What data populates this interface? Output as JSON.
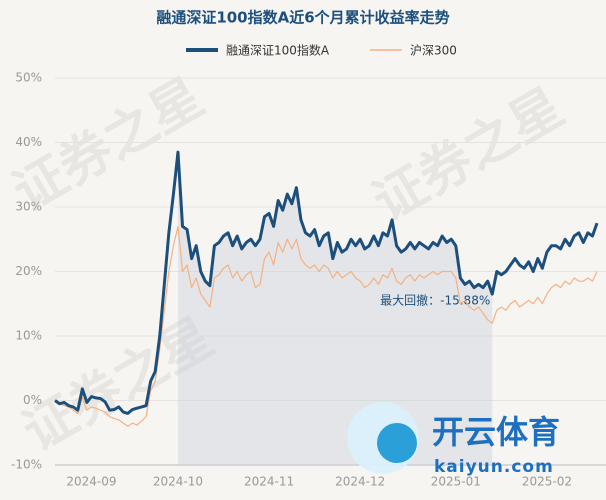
{
  "chart_data": {
    "type": "line",
    "title": "融通深证100指数A近6个月累计收益率走势",
    "categories": [
      null,
      null,
      null,
      null,
      null,
      null,
      null,
      null,
      "2024-09",
      null,
      null,
      null,
      null,
      null,
      null,
      null,
      null,
      null,
      null,
      null,
      null,
      null,
      null,
      null,
      null,
      null,
      null,
      "2024-10",
      null,
      null,
      null,
      null,
      null,
      null,
      null,
      null,
      null,
      null,
      null,
      null,
      null,
      null,
      null,
      null,
      null,
      null,
      null,
      "2024-11",
      null,
      null,
      null,
      null,
      null,
      null,
      null,
      null,
      null,
      null,
      null,
      null,
      null,
      null,
      null,
      null,
      null,
      null,
      null,
      "2024-12",
      null,
      null,
      null,
      null,
      null,
      null,
      null,
      null,
      null,
      null,
      null,
      null,
      null,
      null,
      null,
      null,
      null,
      null,
      null,
      null,
      "2025-01",
      null,
      null,
      null,
      null,
      null,
      null,
      null,
      null,
      null,
      null,
      null,
      null,
      null,
      null,
      null,
      null,
      null,
      null,
      null,
      "2025-02",
      null,
      null,
      null,
      null,
      null,
      null,
      null,
      null,
      null,
      null,
      null
    ],
    "series": [
      {
        "name": "融通深证100指数A",
        "color": "#1d4f7c",
        "values": [
          0,
          -0.5,
          -0.3,
          -0.8,
          -1,
          -1.5,
          1.8,
          -0.3,
          0.6,
          0.4,
          0.3,
          -0.2,
          -1.5,
          -1.4,
          -1,
          -1.8,
          -2,
          -1.4,
          -1.2,
          -1,
          -0.8,
          3,
          4.5,
          10,
          18,
          26,
          32,
          38.5,
          27,
          26.5,
          22,
          24,
          20,
          18.5,
          17.8,
          24,
          24.5,
          25.5,
          26,
          24,
          25.5,
          23.5,
          24.5,
          25,
          24,
          25,
          28.5,
          29,
          27,
          31,
          29.5,
          32,
          30.5,
          33,
          28,
          26,
          25.5,
          26.5,
          24,
          25.5,
          26,
          22,
          24.5,
          23,
          23.5,
          25,
          24,
          25,
          23.5,
          24,
          25.5,
          24,
          26,
          25.5,
          28,
          24,
          23,
          23.5,
          24.5,
          23.5,
          24.5,
          24,
          23.5,
          24.5,
          24,
          25.5,
          24.5,
          25,
          24,
          19,
          18,
          18.5,
          17.5,
          18,
          17.5,
          18.5,
          16.5,
          20,
          19.5,
          20,
          21,
          22,
          21,
          20.5,
          21.5,
          20,
          22,
          20.5,
          23,
          24,
          24,
          23.5,
          25,
          24,
          25.5,
          26,
          24.5,
          26,
          25.5,
          27.5
        ]
      },
      {
        "name": "沪深300",
        "color": "#f4b183",
        "values": [
          0,
          -0.5,
          -0.8,
          -1,
          -1.5,
          -2,
          0.5,
          -1.5,
          -1,
          -1.2,
          -1.5,
          -1.8,
          -2.5,
          -2.8,
          -3,
          -3.5,
          -4,
          -3.5,
          -3.8,
          -3.2,
          -2.5,
          1.5,
          3,
          8,
          14,
          20,
          24,
          27,
          20,
          21,
          17.5,
          19,
          16.5,
          15.5,
          14.5,
          19,
          19.5,
          20.5,
          21,
          19,
          20,
          18.5,
          19.5,
          20,
          17.5,
          18,
          22,
          23,
          21,
          24.5,
          23,
          25,
          23.5,
          25,
          22,
          21,
          20.5,
          21,
          20,
          21,
          20.5,
          19,
          20,
          19,
          19.5,
          20,
          19,
          18.5,
          17.5,
          18,
          19,
          18,
          19.5,
          19,
          20.5,
          18.5,
          18,
          19,
          19.5,
          18.5,
          19.5,
          19,
          19.5,
          20,
          19.5,
          20,
          20,
          20,
          19,
          15,
          15.5,
          14.5,
          14,
          14.5,
          13.5,
          12.5,
          12,
          14,
          14.5,
          14,
          15,
          15.5,
          14.5,
          15,
          15.5,
          15,
          16,
          15,
          16.5,
          17.5,
          18,
          17.5,
          18.5,
          18,
          19,
          18.5,
          18.5,
          19,
          18.5,
          20
        ]
      }
    ],
    "ylim": [
      -10,
      50
    ],
    "yticks": [
      {
        "value": -10,
        "label": "-10%"
      },
      {
        "value": 0,
        "label": "0%"
      },
      {
        "value": 10,
        "label": "10%"
      },
      {
        "value": 20,
        "label": "20%"
      },
      {
        "value": 30,
        "label": "30%"
      },
      {
        "value": 40,
        "label": "40%"
      },
      {
        "value": 50,
        "label": "50%"
      }
    ],
    "grid": true,
    "annotations": [
      "最大回撤：-15.88%"
    ]
  },
  "watermark": "证券之星",
  "logo": {
    "name": "开云体育",
    "url": "kaiyun.com"
  }
}
